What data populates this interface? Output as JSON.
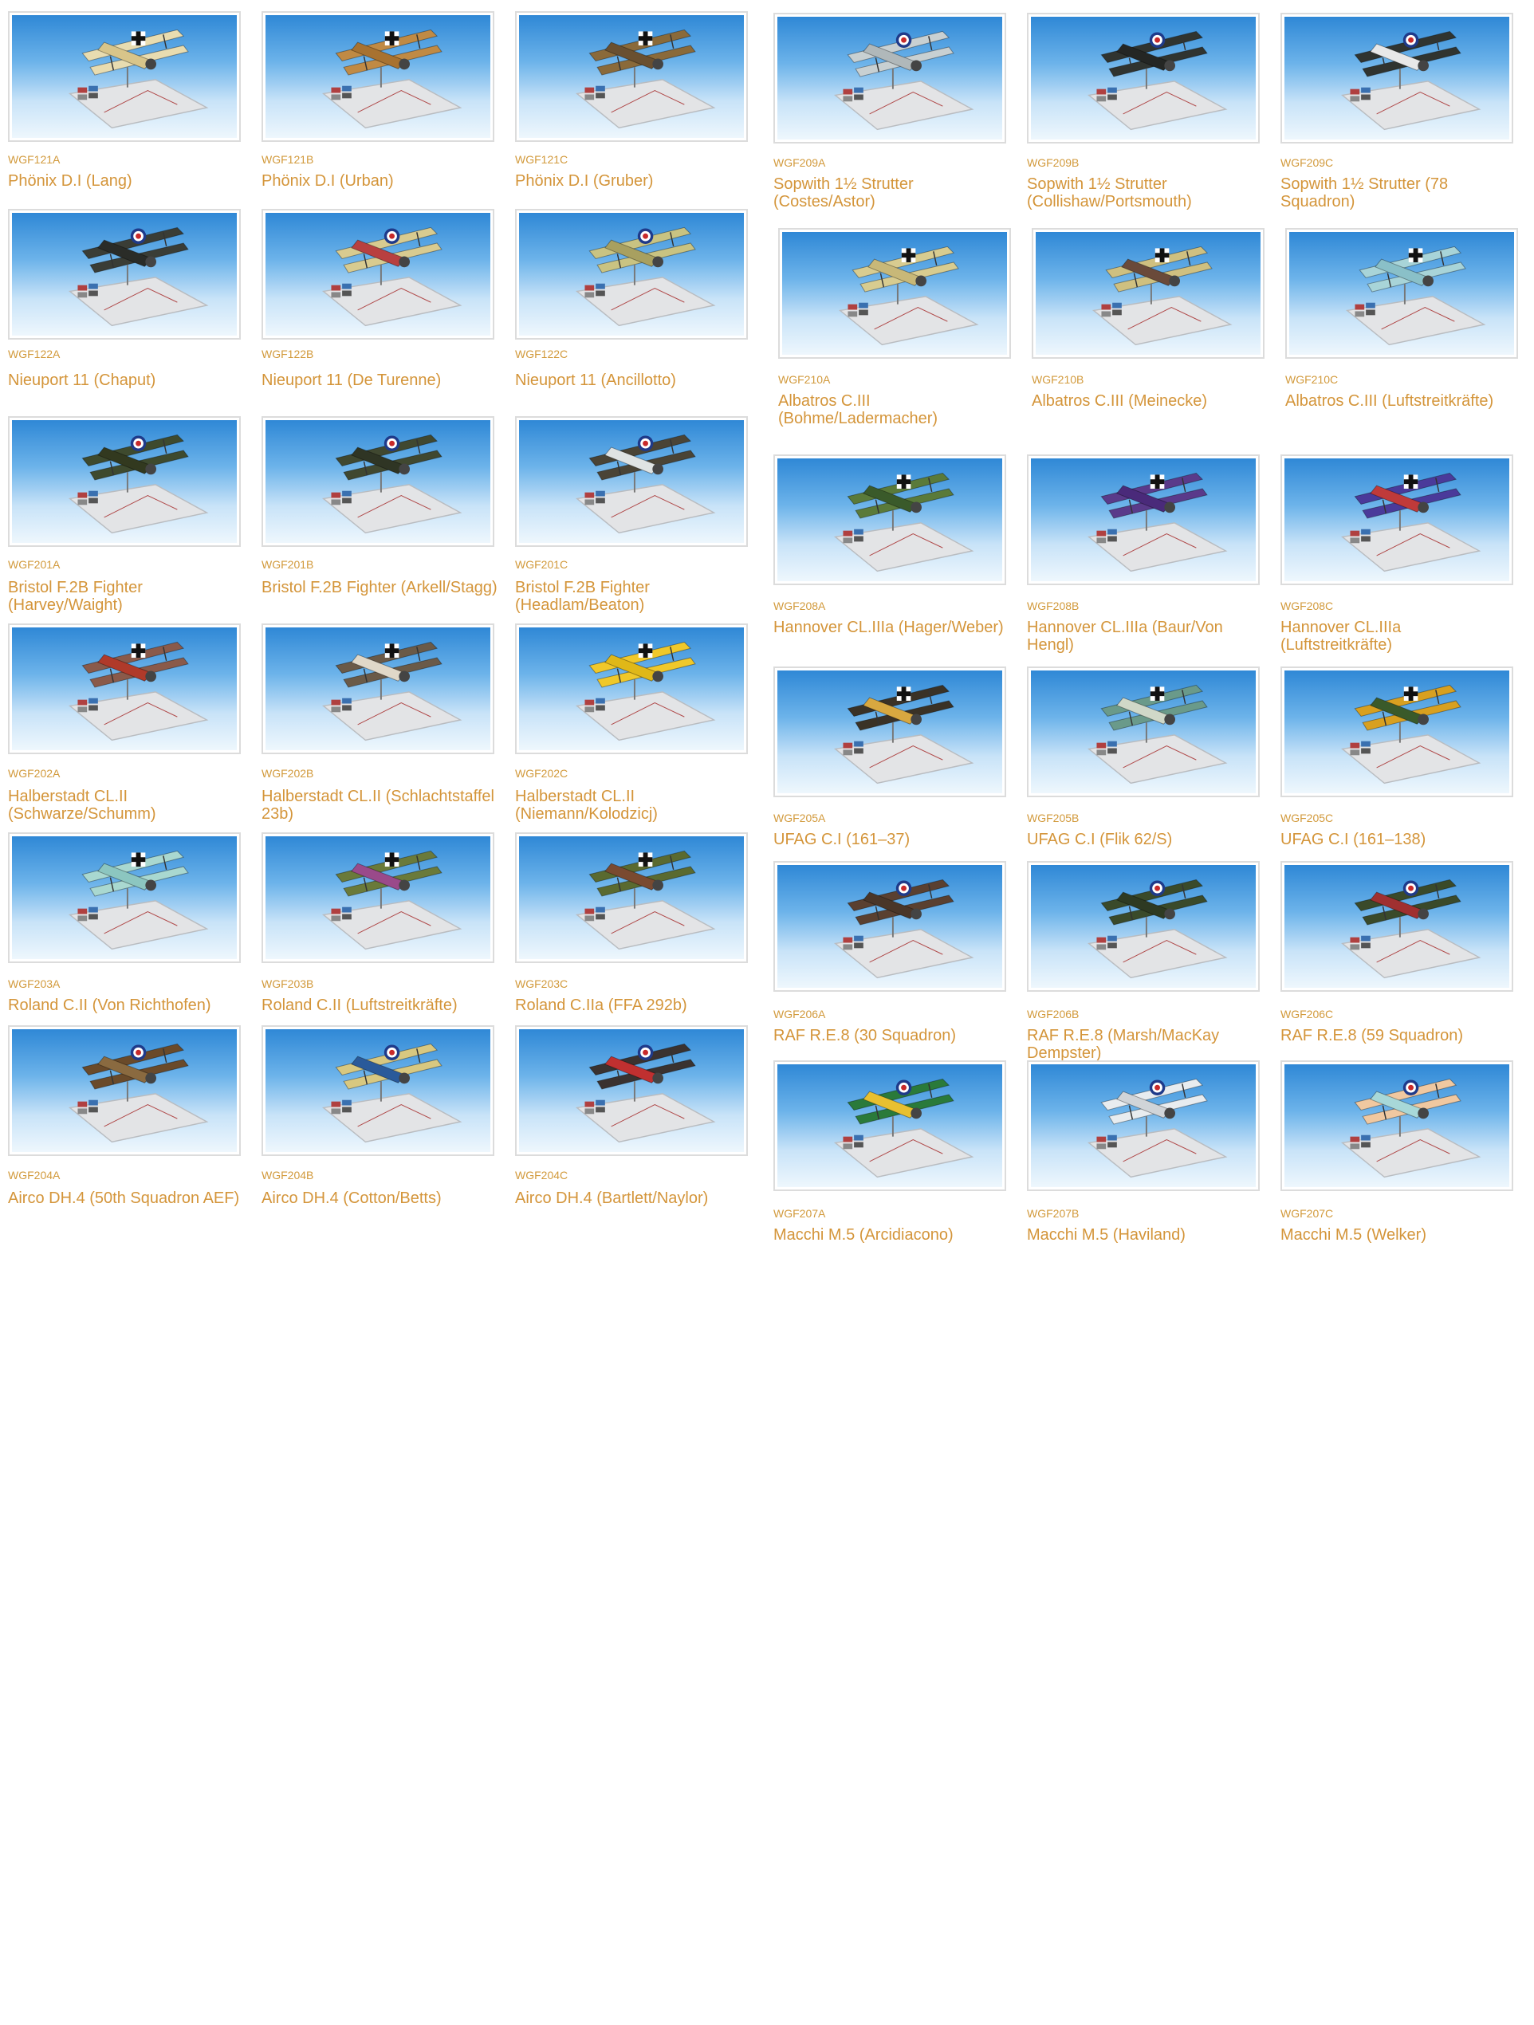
{
  "accent_color": "#d4953a",
  "products": [
    {
      "code": "WGF121A",
      "name": "Phönix D.I (Lang)",
      "wing": "#e8dcb0",
      "fuse": "#d8c58a",
      "mark": "cross"
    },
    {
      "code": "WGF121B",
      "name": "Phönix D.I (Urban)",
      "wing": "#c08a44",
      "fuse": "#a87230",
      "mark": "cross"
    },
    {
      "code": "WGF121C",
      "name": "Phönix D.I (Gruber)",
      "wing": "#8a6a3a",
      "fuse": "#6a5030",
      "mark": "cross"
    },
    {
      "code": "WGF122A",
      "name": "Nieuport 11 (Chaput)",
      "wing": "#3a3d36",
      "fuse": "#2a2c28",
      "mark": "roundel"
    },
    {
      "code": "WGF122B",
      "name": "Nieuport 11 (De Turenne)",
      "wing": "#d8cb90",
      "fuse": "#b84040",
      "mark": "roundel"
    },
    {
      "code": "WGF122C",
      "name": "Nieuport 11 (Ancillotto)",
      "wing": "#c9c382",
      "fuse": "#a8a060",
      "mark": "roundel"
    },
    {
      "code": "WGF201A",
      "name": "Bristol F.2B Fighter (Harvey/Waight)",
      "wing": "#3e4a2e",
      "fuse": "#32391f",
      "mark": "roundel"
    },
    {
      "code": "WGF201B",
      "name": "Bristol F.2B Fighter (Arkell/Stagg)",
      "wing": "#404830",
      "fuse": "#2f3524",
      "mark": "roundel"
    },
    {
      "code": "WGF201C",
      "name": "Bristol F.2B Fighter (Headlam/Beaton)",
      "wing": "#4a4436",
      "fuse": "#dfe3e3",
      "mark": "roundel"
    },
    {
      "code": "WGF202A",
      "name": "Halberstadt CL.II (Schwarze/Schumm)",
      "wing": "#8a5a4a",
      "fuse": "#b03a2a",
      "mark": "cross"
    },
    {
      "code": "WGF202B",
      "name": "Halberstadt CL.II (Schlachtstaffel 23b)",
      "wing": "#6a5a48",
      "fuse": "#e0d8c8",
      "mark": "cross"
    },
    {
      "code": "WGF202C",
      "name": "Halberstadt CL.II (Niemann/Kolodzicj)",
      "wing": "#f0c82a",
      "fuse": "#e0b818",
      "mark": "cross"
    },
    {
      "code": "WGF203A",
      "name": "Roland C.II (Von Richthofen)",
      "wing": "#a9d8d0",
      "fuse": "#8cc6c0",
      "mark": "cross"
    },
    {
      "code": "WGF203B",
      "name": "Roland C.II (Luftstreitkräfte)",
      "wing": "#6a7a3a",
      "fuse": "#9a4a8a",
      "mark": "cross"
    },
    {
      "code": "WGF203C",
      "name": "Roland C.IIa (FFA 292b)",
      "wing": "#5a6a30",
      "fuse": "#7a4a30",
      "mark": "cross"
    },
    {
      "code": "WGF204A",
      "name": "Airco DH.4 (50th Squadron AEF)",
      "wing": "#6a4a2a",
      "fuse": "#8a6a40",
      "mark": "roundel"
    },
    {
      "code": "WGF204B",
      "name": "Airco DH.4 (Cotton/Betts)",
      "wing": "#d8c880",
      "fuse": "#2a5a9a",
      "mark": "roundel"
    },
    {
      "code": "WGF204C",
      "name": "Airco DH.4 (Bartlett/Naylor)",
      "wing": "#3a3230",
      "fuse": "#c03030",
      "mark": "roundel"
    },
    {
      "code": "WGF209A",
      "name": "Sopwith 1½ Strutter (Costes/Astor)",
      "wing": "#c8d0d2",
      "fuse": "#b0b8ba",
      "mark": "roundel"
    },
    {
      "code": "WGF209B",
      "name": "Sopwith 1½ Strutter (Collishaw/Portsmouth)",
      "wing": "#303430",
      "fuse": "#242624",
      "mark": "roundel"
    },
    {
      "code": "WGF209C",
      "name": "Sopwith 1½ Strutter (78 Squadron)",
      "wing": "#303430",
      "fuse": "#e8e8e8",
      "mark": "roundel"
    },
    {
      "code": "WGF210A",
      "name": "Albatros C.III (Bohme/Ladermacher)",
      "wing": "#d8cc90",
      "fuse": "#c8b878",
      "mark": "cross"
    },
    {
      "code": "WGF210B",
      "name": "Albatros C.III (Meinecke)",
      "wing": "#cfc080",
      "fuse": "#6a4a3a",
      "mark": "cross"
    },
    {
      "code": "WGF210C",
      "name": "Albatros C.III (Luftstreitkräfte)",
      "wing": "#a8d4d8",
      "fuse": "#8ac0c8",
      "mark": "cross"
    },
    {
      "code": "WGF208A",
      "name": "Hannover CL.IIIa (Hager/Weber)",
      "wing": "#5a7a3a",
      "fuse": "#3a5a2a",
      "mark": "cross"
    },
    {
      "code": "WGF208B",
      "name": "Hannover CL.IIIa (Baur/Von Hengl)",
      "wing": "#5a3a8a",
      "fuse": "#4a2a7a",
      "mark": "cross"
    },
    {
      "code": "WGF208C",
      "name": "Hannover CL.IIIa (Luftstreitkräfte)",
      "wing": "#4a3a9a",
      "fuse": "#c03a3a",
      "mark": "cross"
    },
    {
      "code": "WGF205A",
      "name": "UFAG C.I (161–37)",
      "wing": "#3a3226",
      "fuse": "#d8a840",
      "mark": "cross"
    },
    {
      "code": "WGF205B",
      "name": "UFAG C.I (Flik 62/S)",
      "wing": "#6a9a8a",
      "fuse": "#d0d8c8",
      "mark": "cross"
    },
    {
      "code": "WGF205C",
      "name": "UFAG C.I (161–138)",
      "wing": "#d8a020",
      "fuse": "#3a5a2a",
      "mark": "cross"
    },
    {
      "code": "WGF206A",
      "name": "RAF R.E.8 (30 Squadron)",
      "wing": "#5a4030",
      "fuse": "#4a3628",
      "mark": "roundel"
    },
    {
      "code": "WGF206B",
      "name": "RAF R.E.8 (Marsh/MacKay Dempster)",
      "wing": "#3a4a2a",
      "fuse": "#2e3a22",
      "mark": "roundel"
    },
    {
      "code": "WGF206C",
      "name": "RAF R.E.8 (59 Squadron)",
      "wing": "#3a4a2a",
      "fuse": "#a03030",
      "mark": "roundel"
    },
    {
      "code": "WGF207A",
      "name": "Macchi M.5 (Arcidiacono)",
      "wing": "#2a7a3a",
      "fuse": "#e8c030",
      "mark": "roundel"
    },
    {
      "code": "WGF207B",
      "name": "Macchi M.5 (Haviland)",
      "wing": "#e8ecef",
      "fuse": "#d0d4d8",
      "mark": "roundel"
    },
    {
      "code": "WGF207C",
      "name": "Macchi M.5 (Welker)",
      "wing": "#f0c8a0",
      "fuse": "#a8d8d8",
      "mark": "roundel"
    }
  ]
}
